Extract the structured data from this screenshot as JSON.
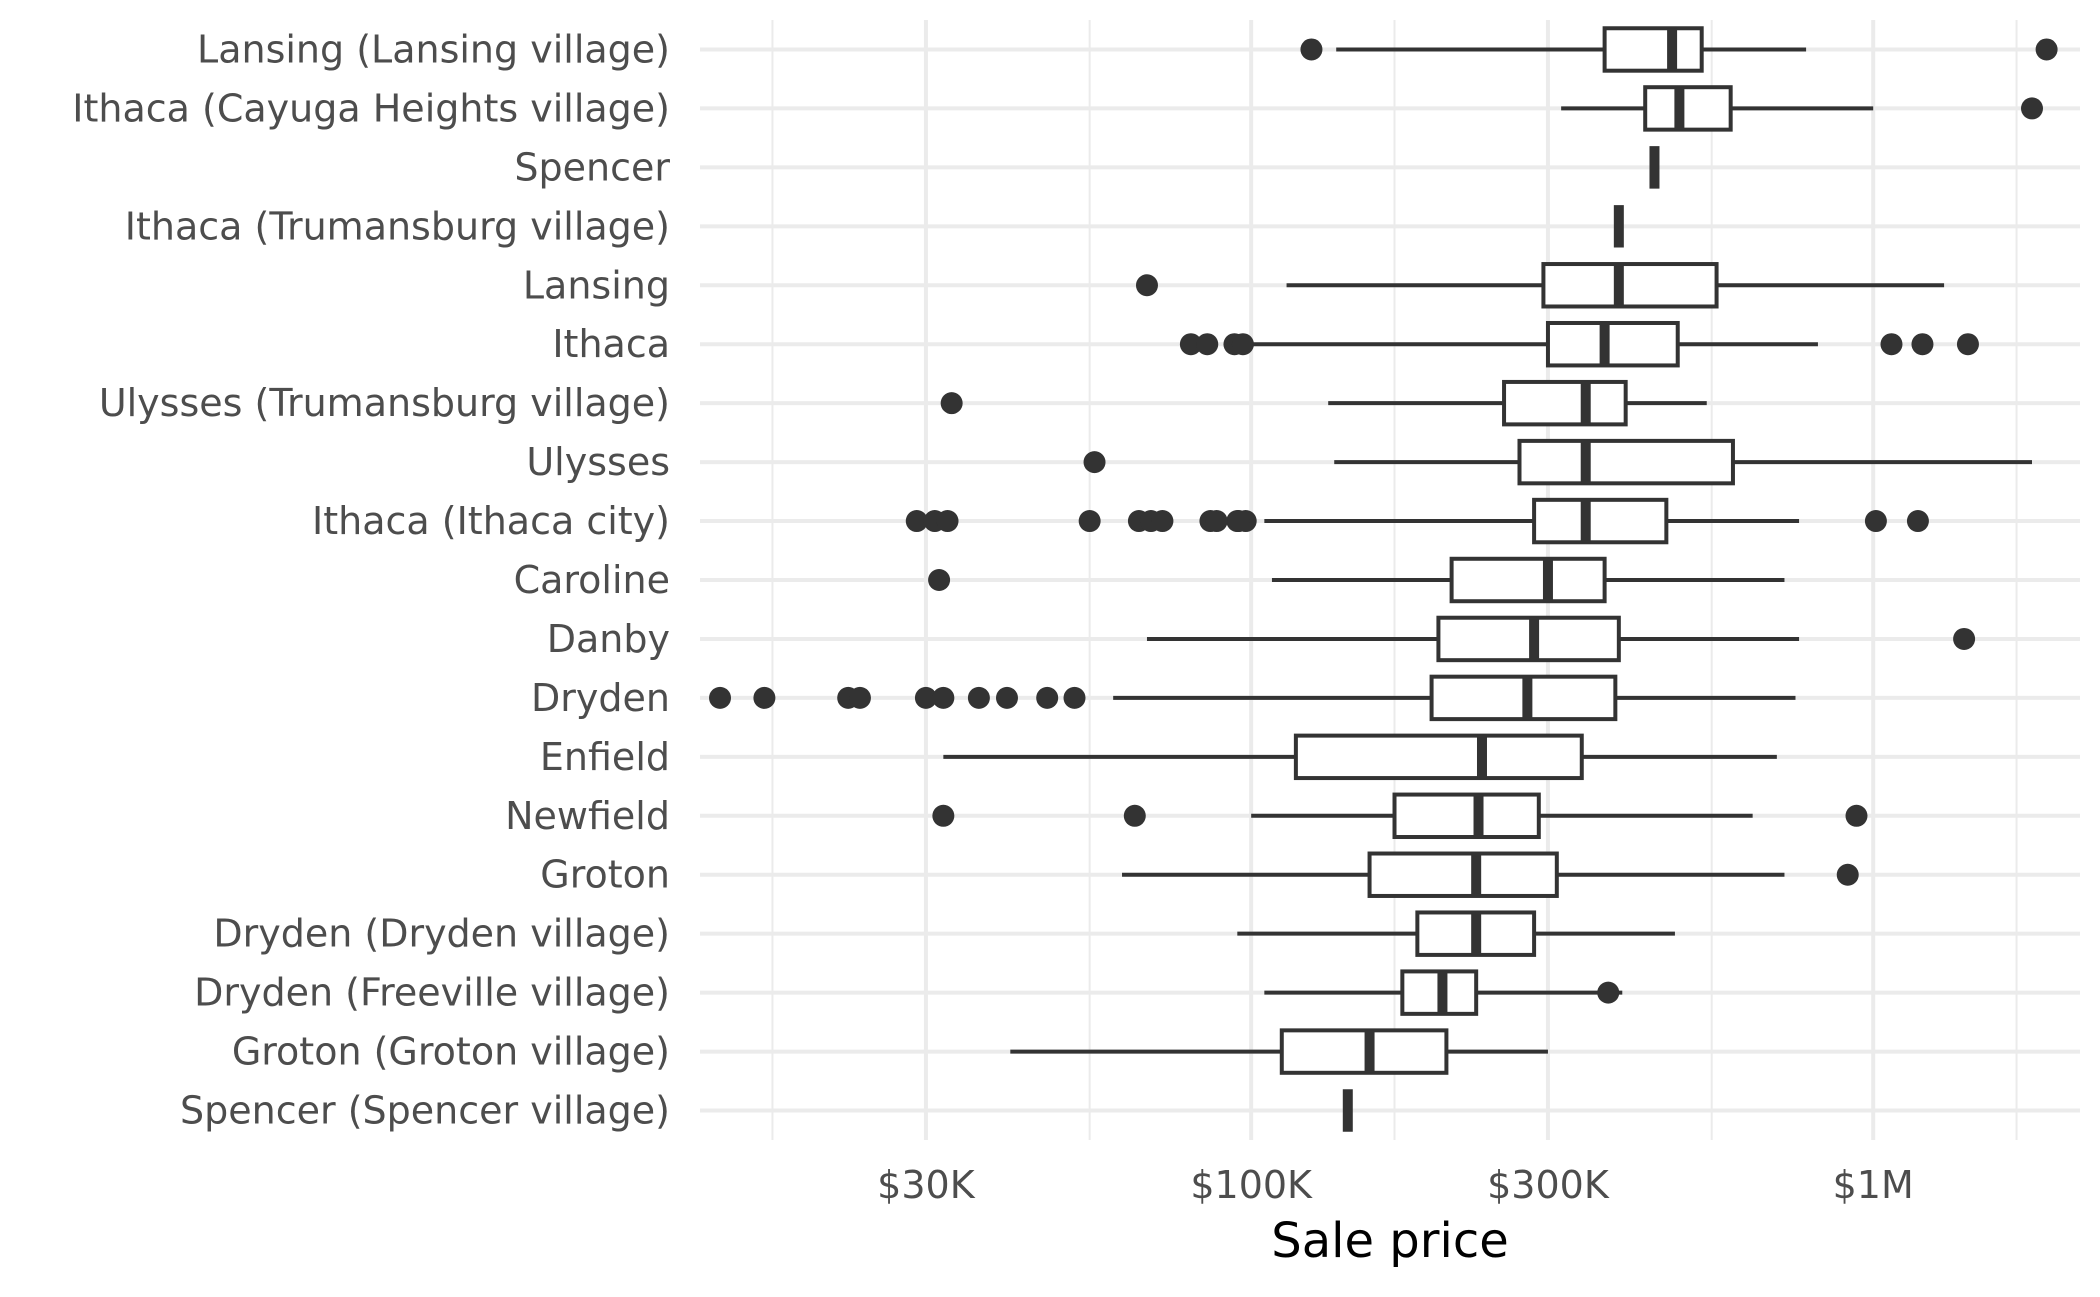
{
  "chart_data": {
    "type": "boxplot",
    "orientation": "horizontal",
    "xscale": "log10",
    "xlabel": "Sale price",
    "ylabel": "",
    "title": "",
    "xlim": [
      13000,
      2150000
    ],
    "x_ticks": [
      {
        "value": 30000,
        "label": "$30K"
      },
      {
        "value": 100000,
        "label": "$100K"
      },
      {
        "value": 300000,
        "label": "$300K"
      },
      {
        "value": 1000000,
        "label": "$1M"
      }
    ],
    "x_minor_ticks": [
      17000,
      55000,
      170000,
      550000,
      1700000
    ],
    "grid": true,
    "colors": {
      "box": "#333333",
      "grid": "#ebebeb",
      "label": "#4d4d4d"
    },
    "categories": [
      {
        "name": "Lansing (Lansing village)",
        "whisker_low": 137000,
        "q1": 370000,
        "median": 475000,
        "q3": 530000,
        "whisker_high": 780000,
        "outliers": [
          125000,
          1900000
        ]
      },
      {
        "name": "Ithaca (Cayuga Heights village)",
        "whisker_low": 315000,
        "q1": 430000,
        "median": 488000,
        "q3": 590000,
        "whisker_high": 1000000,
        "outliers": [
          1800000
        ]
      },
      {
        "name": "Spencer",
        "whisker_low": 445000,
        "q1": 445000,
        "median": 445000,
        "q3": 445000,
        "whisker_high": 445000,
        "outliers": []
      },
      {
        "name": "Ithaca (Trumansburg village)",
        "whisker_low": 390000,
        "q1": 390000,
        "median": 390000,
        "q3": 390000,
        "whisker_high": 390000,
        "outliers": []
      },
      {
        "name": "Lansing",
        "whisker_low": 114000,
        "q1": 295000,
        "median": 390000,
        "q3": 560000,
        "whisker_high": 1300000,
        "outliers": [
          68000
        ]
      },
      {
        "name": "Ithaca",
        "whisker_low": 98000,
        "q1": 300000,
        "median": 370000,
        "q3": 485000,
        "whisker_high": 815000,
        "outliers": [
          80000,
          85000,
          94000,
          97000,
          1070000,
          1200000,
          1420000
        ]
      },
      {
        "name": "Ulysses (Trumansburg village)",
        "whisker_low": 133000,
        "q1": 255000,
        "median": 345000,
        "q3": 400000,
        "whisker_high": 540000,
        "outliers": [
          33000
        ]
      },
      {
        "name": "Ulysses",
        "whisker_low": 136000,
        "q1": 270000,
        "median": 345000,
        "q3": 595000,
        "whisker_high": 1800000,
        "outliers": [
          56000
        ]
      },
      {
        "name": "Ithaca (Ithaca city)",
        "whisker_low": 105000,
        "q1": 285000,
        "median": 345000,
        "q3": 465000,
        "whisker_high": 760000,
        "outliers": [
          29000,
          31000,
          32500,
          55000,
          66000,
          69000,
          72000,
          95000,
          98000,
          86000,
          88000,
          95500,
          1010000,
          1180000
        ]
      },
      {
        "name": "Caroline",
        "whisker_low": 108000,
        "q1": 210000,
        "median": 300000,
        "q3": 370000,
        "whisker_high": 720000,
        "outliers": [
          31500
        ]
      },
      {
        "name": "Danby",
        "whisker_low": 68000,
        "q1": 200000,
        "median": 285000,
        "q3": 390000,
        "whisker_high": 760000,
        "outliers": [
          1400000
        ]
      },
      {
        "name": "Dryden",
        "whisker_low": 60000,
        "q1": 195000,
        "median": 278000,
        "q3": 385000,
        "whisker_high": 750000,
        "outliers": [
          14000,
          16500,
          22500,
          23500,
          30000,
          32000,
          36500,
          40500,
          47000,
          52000
        ]
      },
      {
        "name": "Enfield",
        "whisker_low": 32000,
        "q1": 118000,
        "median": 235000,
        "q3": 340000,
        "whisker_high": 700000,
        "outliers": []
      },
      {
        "name": "Newfield",
        "whisker_low": 100000,
        "q1": 170000,
        "median": 232000,
        "q3": 290000,
        "whisker_high": 640000,
        "outliers": [
          32000,
          65000,
          940000
        ]
      },
      {
        "name": "Groton",
        "whisker_low": 62000,
        "q1": 155000,
        "median": 230000,
        "q3": 310000,
        "whisker_high": 720000,
        "outliers": [
          910000
        ]
      },
      {
        "name": "Dryden (Dryden village)",
        "whisker_low": 95000,
        "q1": 185000,
        "median": 230000,
        "q3": 285000,
        "whisker_high": 480000,
        "outliers": []
      },
      {
        "name": "Dryden (Freeville village)",
        "whisker_low": 105000,
        "q1": 175000,
        "median": 203000,
        "q3": 230000,
        "whisker_high": 395000,
        "outliers": [
          375000
        ]
      },
      {
        "name": "Groton (Groton village)",
        "whisker_low": 41000,
        "q1": 112000,
        "median": 155000,
        "q3": 206000,
        "whisker_high": 300000,
        "outliers": []
      },
      {
        "name": "Spencer (Spencer village)",
        "whisker_low": 143000,
        "q1": 143000,
        "median": 143000,
        "q3": 143000,
        "whisker_high": 143000,
        "outliers": []
      }
    ]
  }
}
